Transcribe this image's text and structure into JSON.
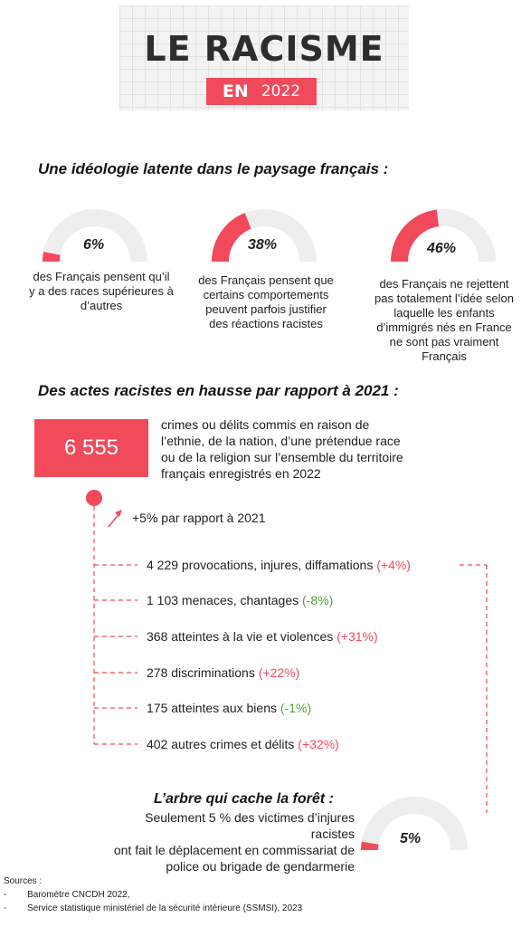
{
  "header": {
    "title": "LE RACISME",
    "badge_en": "EN",
    "badge_year": "2022"
  },
  "colors": {
    "accent": "#f04a5b",
    "gauge_track": "#eeeeee",
    "negative": "#5c9b3a"
  },
  "section1": {
    "title": "Une idéologie latente dans le paysage français :",
    "gauges": [
      {
        "value": 6,
        "label": "6%",
        "text": [
          "des Français pensent qu’il",
          "y a des races supérieures à",
          "d’autres"
        ]
      },
      {
        "value": 38,
        "label": "38%",
        "text": [
          "des Français pensent que",
          "certains comportements",
          "peuvent parfois justifier",
          "des réactions racistes"
        ]
      },
      {
        "value": 46,
        "label": "46%",
        "text": [
          "des Français ne rejettent",
          "pas totalement l’idée selon",
          "laquelle les enfants",
          "d’immigrés nés en France",
          "ne sont pas vraiment",
          "Français"
        ]
      }
    ]
  },
  "section2": {
    "title": "Des actes racistes en hausse par rapport à 2021 :",
    "total": "6 555",
    "total_text": [
      "crimes ou délits commis en raison de",
      "l’ethnie, de la nation, d’une prétendue race",
      "ou de la religion sur l’ensemble du territoire",
      "français enregistrés en 2022"
    ],
    "trend": "+5% par rapport à 2021",
    "rows": [
      {
        "label": "4 229 provocations, injures, diffamations",
        "change": "(+4%)",
        "sign": "pos"
      },
      {
        "label": "1 103 menaces, chantages",
        "change": "(-8%)",
        "sign": "neg"
      },
      {
        "label": "368 atteintes à la vie et violences",
        "change": "(+31%)",
        "sign": "pos"
      },
      {
        "label": "278 discriminations",
        "change": "(+22%)",
        "sign": "pos"
      },
      {
        "label": "175 atteintes aux biens",
        "change": "(-1%)",
        "sign": "neg"
      },
      {
        "label": "402 autres crimes et délits",
        "change": "(+32%)",
        "sign": "pos"
      }
    ]
  },
  "section3": {
    "title": "L’arbre qui cache la forêt :",
    "text": [
      "Seulement 5 % des victimes d’injures racistes",
      "ont fait le déplacement en commissariat de",
      "police ou brigade de gendarmerie"
    ],
    "gauge": {
      "value": 5,
      "label": "5%"
    }
  },
  "sources": {
    "title": "Sources :",
    "items": [
      {
        "bullet": "-",
        "text": "Baromètre CNCDH 2022,"
      },
      {
        "bullet": "-",
        "text": "Service statistique ministériel de la sécurité intérieure (SSMSI), 2023"
      }
    ]
  }
}
